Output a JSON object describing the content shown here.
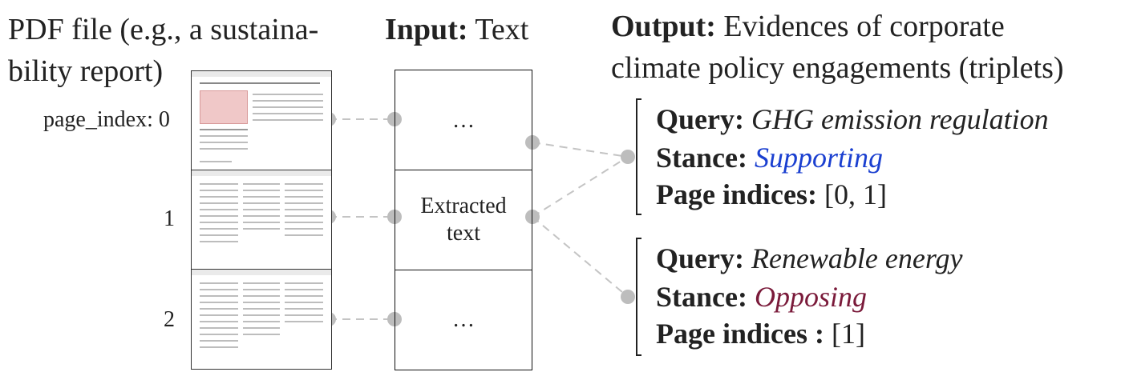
{
  "pdf_header": {
    "line1": "PDF file (e.g., a sustaina-",
    "line2": "bility report)"
  },
  "input_header": {
    "bold": "Input:",
    "rest": " Text"
  },
  "output_header": {
    "bold": "Output:",
    "line1_rest": " Evidences of corporate",
    "line2": "climate policy engagements (triplets)"
  },
  "pages": [
    {
      "label": "page_index: 0"
    },
    {
      "label": "1"
    },
    {
      "label": "2"
    }
  ],
  "text_boxes": [
    {
      "text": "…"
    },
    {
      "text": "Extracted\ntext"
    },
    {
      "text": "…"
    }
  ],
  "triplets": [
    {
      "query_label": "Query:",
      "query_value": "GHG emission regulation",
      "stance_label": "Stance:",
      "stance_value": "Supporting",
      "stance_color": "#1a3fd0",
      "pages_label": "Page indices:",
      "pages_value": "[0, 1]"
    },
    {
      "query_label": "Query:",
      "query_value": "Renewable energy",
      "stance_label": "Stance:",
      "stance_value": "Opposing",
      "stance_color": "#7a1a3a",
      "pages_label": "Page indices :",
      "pages_value": "[1]"
    }
  ],
  "connector_color": "#c4c4c4",
  "node_color": "#bdbdbd"
}
